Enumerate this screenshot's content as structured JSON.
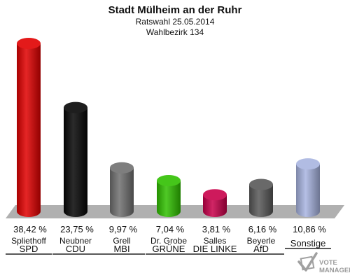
{
  "title": "Stadt Mülheim an der Ruhr",
  "subtitle": "Ratswahl 25.05.2014",
  "subtitle2": "Wahlbezirk 134",
  "logo": {
    "line1": "VOTE",
    "line2": "MANAGER"
  },
  "chart_data": {
    "type": "bar",
    "title": "Stadt Mülheim an der Ruhr",
    "subtitle": [
      "Ratswahl 25.05.2014",
      "Wahlbezirk 134"
    ],
    "categories": [
      "SPD",
      "CDU",
      "MBI",
      "GRÜNE",
      "DIE LINKE",
      "AfD",
      "Sonstige"
    ],
    "candidates": [
      "Spliethoff",
      "Neubner",
      "Grell",
      "Dr. Grobe",
      "Salles",
      "Beyerle",
      ""
    ],
    "values": [
      38.42,
      23.75,
      9.97,
      7.04,
      3.81,
      6.16,
      10.86
    ],
    "value_labels": [
      "38,42 %",
      "23,75 %",
      "9,97 %",
      "7,04 %",
      "3,81 %",
      "6,16 %",
      "10,86 %"
    ],
    "colors": [
      "#e00000",
      "#050505",
      "#707070",
      "#30c000",
      "#c8004a",
      "#585858",
      "#a8b4e0"
    ],
    "unit": "%",
    "ylim": [
      0,
      38.42
    ],
    "grid": false
  }
}
